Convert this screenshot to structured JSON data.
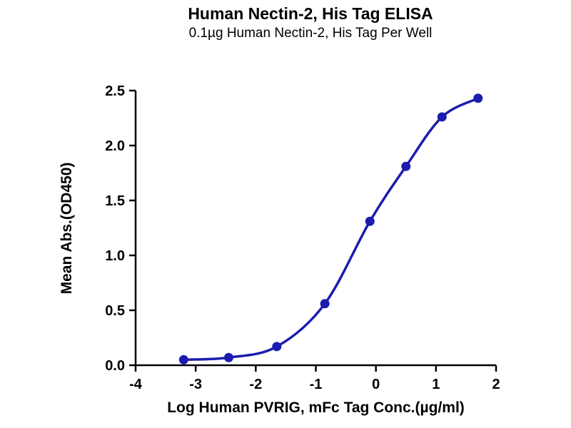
{
  "chart_data": {
    "type": "line",
    "title": "Human Nectin-2, His Tag ELISA",
    "subtitle": "0.1µg Human Nectin-2, His Tag Per Well",
    "xlabel": "Log Human PVRIG, mFc Tag Conc.(µg/ml)",
    "ylabel": "Mean Abs.(OD450)",
    "x": [
      -3.2,
      -2.45,
      -1.65,
      -0.85,
      -0.1,
      0.5,
      1.1,
      1.7
    ],
    "y": [
      0.05,
      0.07,
      0.17,
      0.56,
      1.31,
      1.81,
      2.26,
      2.43
    ],
    "xlim": [
      -4,
      2
    ],
    "ylim": [
      0,
      2.5
    ],
    "xticks": [
      -4,
      -3,
      -2,
      -1,
      0,
      1,
      2
    ],
    "xtick_labels": [
      "-4",
      "-3",
      "-2",
      "-1",
      "0",
      "1",
      "2"
    ],
    "yticks": [
      0,
      0.5,
      1,
      1.5,
      2,
      2.5
    ],
    "ytick_labels": [
      "0.0",
      "0.5",
      "1.0",
      "1.5",
      "2.0",
      "2.5"
    ],
    "line_color": "#1c1cb0",
    "marker_color": "#1c1cb0",
    "marker_style": "circle",
    "axis_color": "#000000",
    "grid": false,
    "legend_position": "none"
  }
}
